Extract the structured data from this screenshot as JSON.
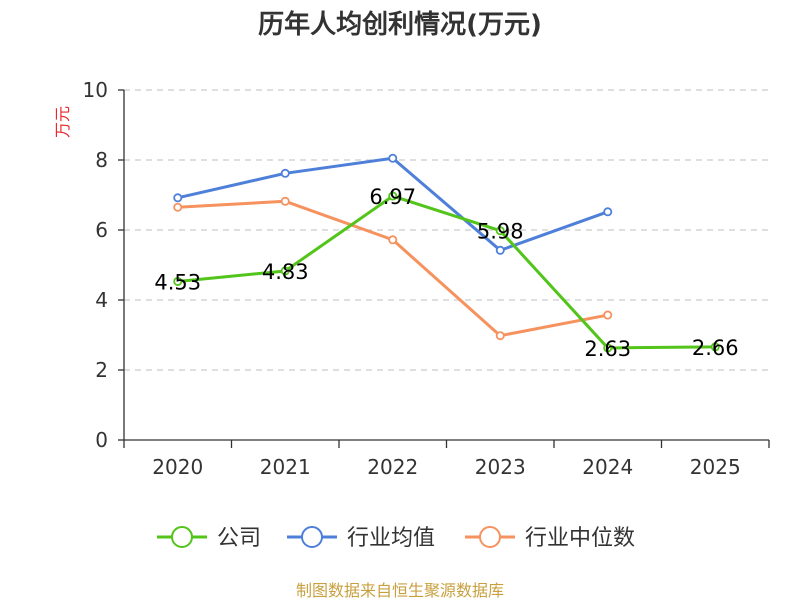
{
  "chart_data": {
    "type": "line",
    "title": "历年人均创利情况(万元)",
    "ylabel": "万元",
    "xlabel": "",
    "categories": [
      "2020",
      "2021",
      "2022",
      "2023",
      "2024",
      "2025"
    ],
    "ylim": [
      0,
      10
    ],
    "yticks": [
      0,
      2,
      4,
      6,
      8,
      10
    ],
    "grid": true,
    "legend_position": "bottom",
    "series": [
      {
        "name": "公司",
        "color": "#52c41a",
        "values": [
          4.53,
          4.83,
          6.97,
          5.98,
          2.63,
          2.66
        ],
        "labels": [
          "4.53",
          "4.83",
          "6.97",
          "5.98",
          "2.63",
          "2.66"
        ]
      },
      {
        "name": "行业均值",
        "color": "#4e7fd9",
        "values": [
          6.92,
          7.62,
          8.05,
          5.42,
          6.52,
          null
        ]
      },
      {
        "name": "行业中位数",
        "color": "#f5925e",
        "values": [
          6.65,
          6.82,
          5.72,
          2.98,
          3.57,
          null
        ]
      }
    ]
  },
  "source": "制图数据来自恒生聚源数据库",
  "colors": {
    "axis": "#333333",
    "grid": "#cccccc",
    "ylabel": "#e8282b",
    "source": "#c8a040"
  }
}
